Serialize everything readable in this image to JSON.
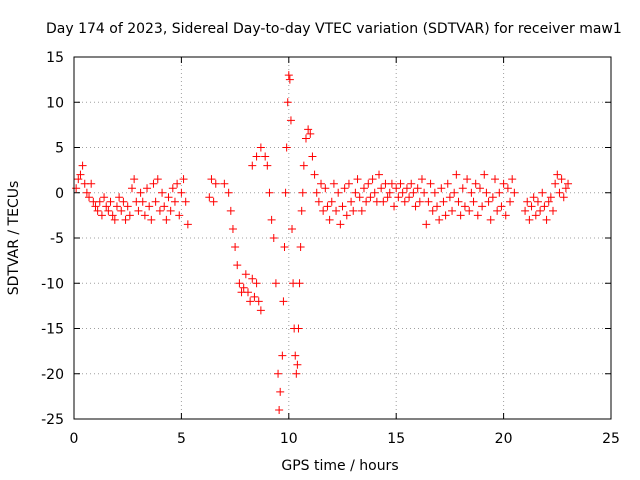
{
  "chart_data": {
    "type": "scatter",
    "title": "Day 174 of 2023, Sidereal Day-to-day VTEC variation (SDTVAR) for receiver maw1",
    "xlabel": "GPS time / hours",
    "ylabel": "SDTVAR / TECUs",
    "xlim": [
      0,
      25
    ],
    "ylim": [
      -25,
      15
    ],
    "x_ticks": [
      0,
      5,
      10,
      15,
      20,
      25
    ],
    "y_ticks": [
      15,
      10,
      5,
      0,
      -5,
      -10,
      -15,
      -20,
      -25
    ],
    "grid": true,
    "marker": "plus",
    "color": "#ff0000",
    "series": [
      {
        "name": "maw1",
        "points": [
          [
            0.1,
            0.5
          ],
          [
            0.2,
            1.5
          ],
          [
            0.3,
            2.0
          ],
          [
            0.4,
            3.0
          ],
          [
            0.5,
            1.0
          ],
          [
            0.6,
            0.0
          ],
          [
            0.7,
            -0.5
          ],
          [
            0.8,
            1.0
          ],
          [
            0.9,
            -1.0
          ],
          [
            1.0,
            -1.5
          ],
          [
            1.1,
            -2.0
          ],
          [
            1.2,
            -1.0
          ],
          [
            1.3,
            -2.5
          ],
          [
            1.4,
            -0.5
          ],
          [
            1.5,
            -1.5
          ],
          [
            1.6,
            -2.0
          ],
          [
            1.7,
            -1.0
          ],
          [
            1.8,
            -2.5
          ],
          [
            1.9,
            -3.0
          ],
          [
            2.0,
            -1.5
          ],
          [
            2.1,
            -0.5
          ],
          [
            2.2,
            -2.0
          ],
          [
            2.3,
            -1.0
          ],
          [
            2.4,
            -3.0
          ],
          [
            2.5,
            -1.5
          ],
          [
            2.6,
            -2.5
          ],
          [
            2.7,
            0.5
          ],
          [
            2.8,
            1.5
          ],
          [
            2.9,
            -1.0
          ],
          [
            3.0,
            -2.0
          ],
          [
            3.1,
            0.0
          ],
          [
            3.2,
            -1.0
          ],
          [
            3.3,
            -2.5
          ],
          [
            3.4,
            0.5
          ],
          [
            3.5,
            -1.5
          ],
          [
            3.6,
            -3.0
          ],
          [
            3.7,
            1.0
          ],
          [
            3.8,
            -1.0
          ],
          [
            3.9,
            1.5
          ],
          [
            4.0,
            -2.0
          ],
          [
            4.1,
            0.0
          ],
          [
            4.2,
            -1.5
          ],
          [
            4.3,
            -3.0
          ],
          [
            4.4,
            -0.5
          ],
          [
            4.5,
            -2.0
          ],
          [
            4.6,
            0.5
          ],
          [
            4.7,
            -1.0
          ],
          [
            4.8,
            1.0
          ],
          [
            4.9,
            -2.5
          ],
          [
            5.0,
            0.0
          ],
          [
            5.1,
            1.5
          ],
          [
            5.2,
            -1.0
          ],
          [
            5.3,
            -3.5
          ],
          [
            6.3,
            -0.5
          ],
          [
            6.4,
            1.5
          ],
          [
            6.5,
            -1.0
          ],
          [
            6.6,
            1.0
          ],
          [
            7.0,
            1.0
          ],
          [
            7.2,
            0.0
          ],
          [
            7.3,
            -2.0
          ],
          [
            7.4,
            -4.0
          ],
          [
            7.5,
            -6.0
          ],
          [
            7.6,
            -8.0
          ],
          [
            7.7,
            -10.0
          ],
          [
            7.8,
            -11.0
          ],
          [
            7.9,
            -10.5
          ],
          [
            8.0,
            -9.0
          ],
          [
            8.1,
            -11.0
          ],
          [
            8.2,
            -12.0
          ],
          [
            8.3,
            -9.5
          ],
          [
            8.4,
            -11.5
          ],
          [
            8.5,
            -10.0
          ],
          [
            8.6,
            -12.0
          ],
          [
            8.7,
            -13.0
          ],
          [
            8.3,
            3.0
          ],
          [
            8.5,
            4.0
          ],
          [
            8.7,
            5.0
          ],
          [
            8.9,
            4.0
          ],
          [
            9.0,
            3.0
          ],
          [
            9.1,
            0.0
          ],
          [
            9.2,
            -3.0
          ],
          [
            9.3,
            -5.0
          ],
          [
            9.4,
            -10.0
          ],
          [
            9.5,
            -20.0
          ],
          [
            9.55,
            -24.0
          ],
          [
            9.6,
            -22.0
          ],
          [
            9.7,
            -18.0
          ],
          [
            9.75,
            -12.0
          ],
          [
            9.8,
            -6.0
          ],
          [
            9.85,
            0.0
          ],
          [
            9.9,
            5.0
          ],
          [
            9.95,
            10.0
          ],
          [
            10.0,
            13.0
          ],
          [
            10.05,
            12.5
          ],
          [
            10.1,
            8.0
          ],
          [
            10.15,
            -4.0
          ],
          [
            10.2,
            -10.0
          ],
          [
            10.25,
            -15.0
          ],
          [
            10.3,
            -18.0
          ],
          [
            10.35,
            -20.0
          ],
          [
            10.4,
            -19.0
          ],
          [
            10.45,
            -15.0
          ],
          [
            10.5,
            -10.0
          ],
          [
            10.55,
            -6.0
          ],
          [
            10.6,
            -2.0
          ],
          [
            10.65,
            0.0
          ],
          [
            10.7,
            3.0
          ],
          [
            10.8,
            6.0
          ],
          [
            10.9,
            7.0
          ],
          [
            11.0,
            6.5
          ],
          [
            11.1,
            4.0
          ],
          [
            11.2,
            2.0
          ],
          [
            11.3,
            0.0
          ],
          [
            11.4,
            -1.0
          ],
          [
            11.5,
            1.0
          ],
          [
            11.6,
            -2.0
          ],
          [
            11.7,
            0.5
          ],
          [
            11.8,
            -1.5
          ],
          [
            11.9,
            -3.0
          ],
          [
            12.0,
            -1.0
          ],
          [
            12.1,
            1.0
          ],
          [
            12.2,
            -2.0
          ],
          [
            12.3,
            0.0
          ],
          [
            12.4,
            -3.5
          ],
          [
            12.5,
            -1.5
          ],
          [
            12.6,
            0.5
          ],
          [
            12.7,
            -2.5
          ],
          [
            12.8,
            1.0
          ],
          [
            12.9,
            -1.0
          ],
          [
            13.0,
            -2.0
          ],
          [
            13.1,
            0.0
          ],
          [
            13.2,
            1.5
          ],
          [
            13.3,
            -0.5
          ],
          [
            13.4,
            -2.0
          ],
          [
            13.5,
            0.5
          ],
          [
            13.6,
            -1.0
          ],
          [
            13.7,
            1.0
          ],
          [
            13.8,
            -0.5
          ],
          [
            13.9,
            1.5
          ],
          [
            14.0,
            0.0
          ],
          [
            14.1,
            -1.0
          ],
          [
            14.2,
            2.0
          ],
          [
            14.3,
            0.5
          ],
          [
            14.4,
            -1.0
          ],
          [
            14.5,
            1.0
          ],
          [
            14.6,
            -0.5
          ],
          [
            14.7,
            0.0
          ],
          [
            14.8,
            1.0
          ],
          [
            14.9,
            -1.5
          ],
          [
            15.0,
            0.5
          ],
          [
            15.1,
            -0.5
          ],
          [
            15.2,
            1.0
          ],
          [
            15.3,
            0.0
          ],
          [
            15.4,
            -1.0
          ],
          [
            15.5,
            0.5
          ],
          [
            15.6,
            -0.5
          ],
          [
            15.7,
            1.0
          ],
          [
            15.8,
            0.0
          ],
          [
            15.9,
            -1.5
          ],
          [
            16.0,
            0.5
          ],
          [
            16.1,
            -1.0
          ],
          [
            16.2,
            1.5
          ],
          [
            16.3,
            0.0
          ],
          [
            16.4,
            -3.5
          ],
          [
            16.5,
            -1.0
          ],
          [
            16.6,
            1.0
          ],
          [
            16.7,
            -2.0
          ],
          [
            16.8,
            0.0
          ],
          [
            16.9,
            -1.5
          ],
          [
            17.0,
            -3.0
          ],
          [
            17.1,
            0.5
          ],
          [
            17.2,
            -1.0
          ],
          [
            17.3,
            -2.5
          ],
          [
            17.4,
            1.0
          ],
          [
            17.5,
            -0.5
          ],
          [
            17.6,
            -2.0
          ],
          [
            17.7,
            0.0
          ],
          [
            17.8,
            2.0
          ],
          [
            17.9,
            -1.0
          ],
          [
            18.0,
            -2.5
          ],
          [
            18.1,
            0.5
          ],
          [
            18.2,
            -1.5
          ],
          [
            18.3,
            1.5
          ],
          [
            18.4,
            -2.0
          ],
          [
            18.5,
            0.0
          ],
          [
            18.6,
            -1.0
          ],
          [
            18.7,
            1.0
          ],
          [
            18.8,
            -2.5
          ],
          [
            18.9,
            0.5
          ],
          [
            19.0,
            -1.5
          ],
          [
            19.1,
            2.0
          ],
          [
            19.2,
            0.0
          ],
          [
            19.3,
            -1.0
          ],
          [
            19.4,
            -3.0
          ],
          [
            19.5,
            -0.5
          ],
          [
            19.6,
            1.5
          ],
          [
            19.7,
            -2.0
          ],
          [
            19.8,
            0.0
          ],
          [
            19.9,
            -1.5
          ],
          [
            20.0,
            1.0
          ],
          [
            20.1,
            -2.5
          ],
          [
            20.2,
            0.5
          ],
          [
            20.3,
            -1.0
          ],
          [
            20.4,
            1.5
          ],
          [
            20.5,
            0.0
          ],
          [
            21.0,
            -2.0
          ],
          [
            21.1,
            -1.0
          ],
          [
            21.2,
            -3.0
          ],
          [
            21.3,
            -1.5
          ],
          [
            21.4,
            -0.5
          ],
          [
            21.5,
            -2.5
          ],
          [
            21.6,
            -1.0
          ],
          [
            21.7,
            -2.0
          ],
          [
            21.8,
            0.0
          ],
          [
            21.9,
            -1.5
          ],
          [
            22.0,
            -3.0
          ],
          [
            22.1,
            -1.0
          ],
          [
            22.2,
            -0.5
          ],
          [
            22.3,
            -2.0
          ],
          [
            22.4,
            1.0
          ],
          [
            22.5,
            2.0
          ],
          [
            22.6,
            0.0
          ],
          [
            22.7,
            1.5
          ],
          [
            22.8,
            -0.5
          ],
          [
            22.9,
            0.5
          ],
          [
            23.0,
            1.0
          ]
        ]
      }
    ]
  }
}
